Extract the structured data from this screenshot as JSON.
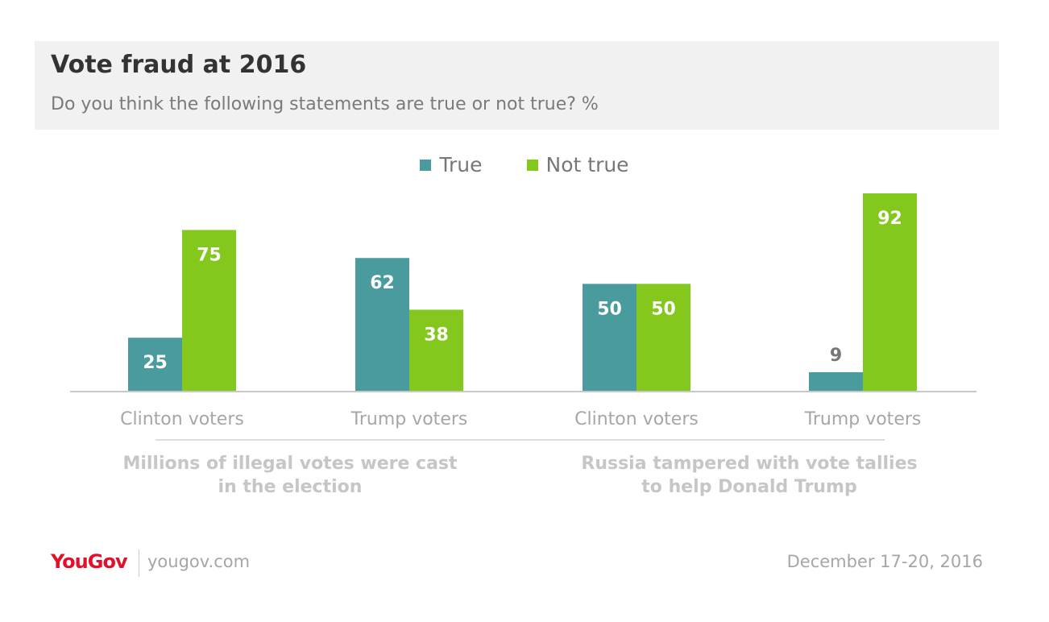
{
  "header": {
    "title": "Vote fraud at 2016",
    "subtitle": "Do you think the following statements are true or not true? %"
  },
  "legend": [
    {
      "label": "True",
      "color": "#4a9b9e"
    },
    {
      "label": "Not true",
      "color": "#84c81e"
    }
  ],
  "groups": [
    {
      "label_line1": "Millions of illegal votes were cast",
      "label_line2": "in the election"
    },
    {
      "label_line1": "Russia tampered with vote tallies",
      "label_line2": "to help Donald Trump"
    }
  ],
  "chart_data": {
    "type": "bar",
    "categories": [
      "Clinton voters",
      "Trump voters",
      "Clinton voters",
      "Trump voters"
    ],
    "series": [
      {
        "name": "True",
        "values": [
          25,
          62,
          50,
          9
        ],
        "color": "#4a9b9e"
      },
      {
        "name": "Not true",
        "values": [
          75,
          38,
          50,
          92
        ],
        "color": "#84c81e"
      }
    ],
    "groups": [
      "Millions of illegal votes were cast in the election",
      "Russia tampered with vote tallies to help Donald Trump"
    ],
    "ylim": [
      0,
      92
    ],
    "grid": false,
    "legend": "top-center"
  },
  "footer": {
    "brand": "YouGov",
    "site": "yougov.com",
    "date": "December 17-20, 2016"
  }
}
